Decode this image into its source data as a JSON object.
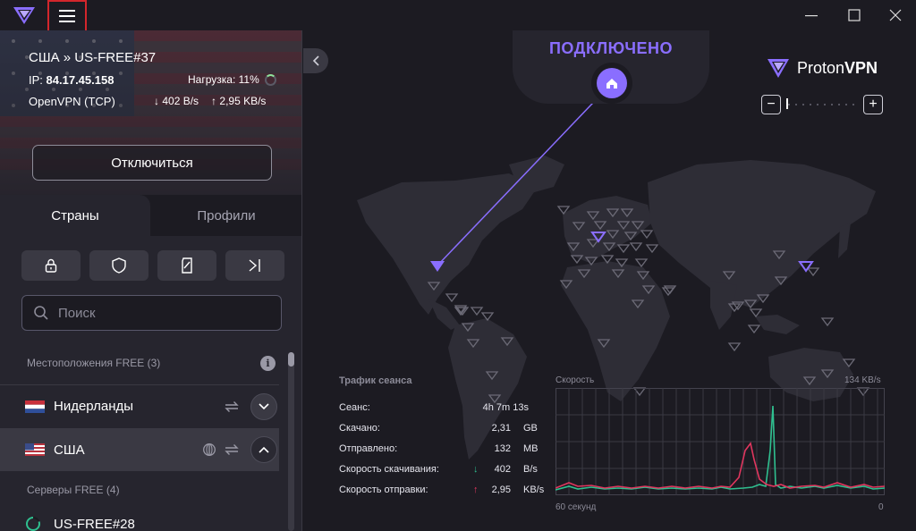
{
  "titlebar": {
    "menu_icon": "hamburger-icon"
  },
  "connection": {
    "title": "США » US-FREE#37",
    "ip_label": "IP:",
    "ip_value": "84.17.45.158",
    "load": "Нагрузка: 11%",
    "protocol": "OpenVPN (TCP)",
    "download": "402 B/s",
    "upload": "2,95 KB/s",
    "disconnect_label": "Отключиться"
  },
  "tabs": {
    "countries": "Страны",
    "profiles": "Профили"
  },
  "filters": [
    "lock-icon",
    "shield-icon",
    "tor-icon",
    "arrow-right-bar-icon"
  ],
  "search": {
    "placeholder": "Поиск"
  },
  "sections": {
    "free_locations": "Местоположения FREE (3)",
    "free_servers": "Серверы FREE (4)"
  },
  "countries": [
    {
      "name": "Нидерланды",
      "flag": "nl"
    },
    {
      "name": "США",
      "flag": "us"
    }
  ],
  "server": {
    "name": "US-FREE#28"
  },
  "map": {
    "status": "ПОДКЛЮЧЕНО",
    "brand_proton": "Proton",
    "brand_vpn": "VPN",
    "zoom_minus": "−",
    "zoom_plus": "+"
  },
  "stats": {
    "title": "Трафик сеанса",
    "rows": [
      {
        "label": "Сеанс:",
        "value": "4h 7m 13s",
        "unit": ""
      },
      {
        "label": "Скачано:",
        "value": "2,31",
        "unit": "GB"
      },
      {
        "label": "Отправлено:",
        "value": "132",
        "unit": "MB"
      },
      {
        "label": "Скорость скачивания:",
        "value": "402",
        "unit": "B/s",
        "arrow": "↓"
      },
      {
        "label": "Скорость отправки:",
        "value": "2,95",
        "unit": "KB/s",
        "arrow": "↑"
      }
    ]
  },
  "speed_chart": {
    "title": "Скорость",
    "max_label": "134  KB/s",
    "x_left": "60 секунд",
    "x_right": "0",
    "colors": {
      "download": "#2fbf8f",
      "upload": "#e0365e"
    }
  }
}
